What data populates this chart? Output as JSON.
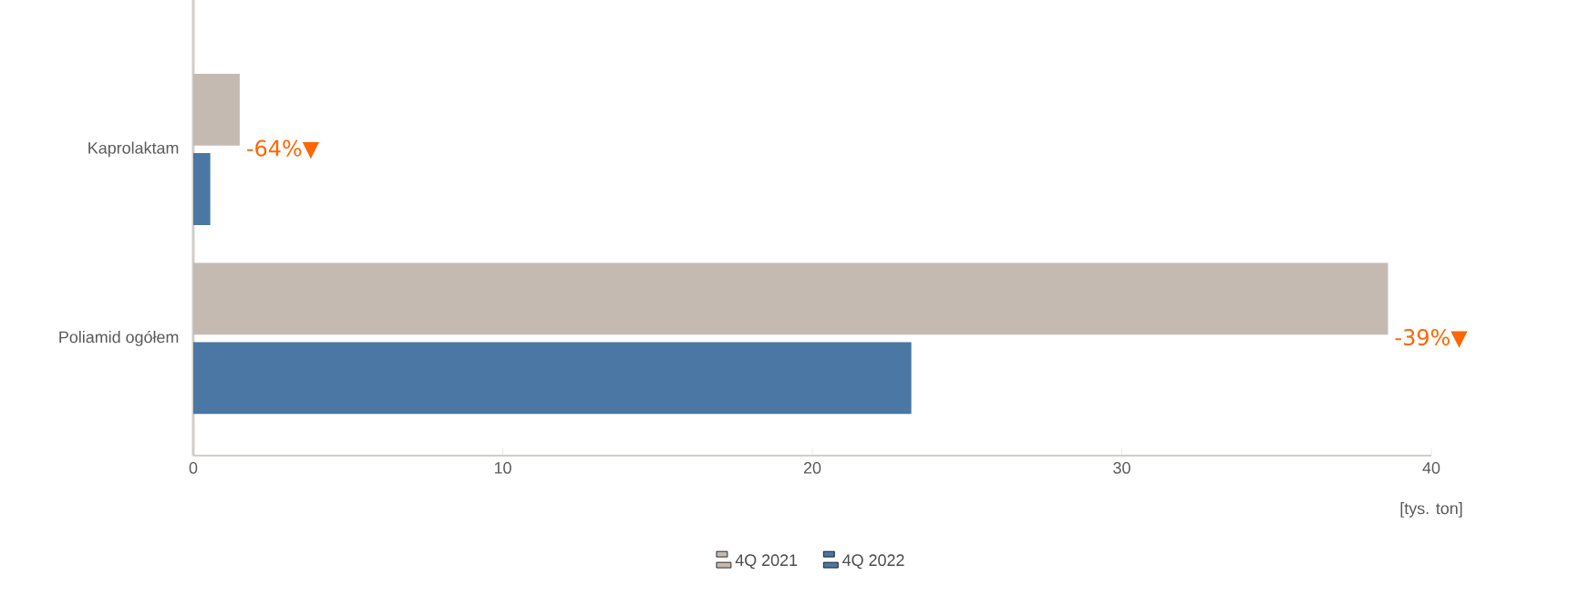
{
  "chart_data": {
    "type": "bar",
    "orientation": "horizontal",
    "categories": [
      "Kaprolaktam",
      "Poliamid ogółem"
    ],
    "series": [
      {
        "name": "4Q 2021",
        "color": "#c4bab2",
        "values": [
          1.5,
          38.6
        ]
      },
      {
        "name": "4Q 2022",
        "color": "#4a77a3",
        "values": [
          0.55,
          23.2
        ]
      }
    ],
    "xlim": [
      0,
      40
    ],
    "xticks": [
      0,
      10,
      20,
      30,
      40
    ],
    "xlabel": "[tys. ton]",
    "annotations": [
      {
        "text": "-64%▼",
        "x": 1.5,
        "y": "Kaprolaktam"
      },
      {
        "text": "-39%▼",
        "x": 38.6,
        "y": "Poliamid ogółem"
      }
    ],
    "legend": "bottom",
    "grid": false
  }
}
